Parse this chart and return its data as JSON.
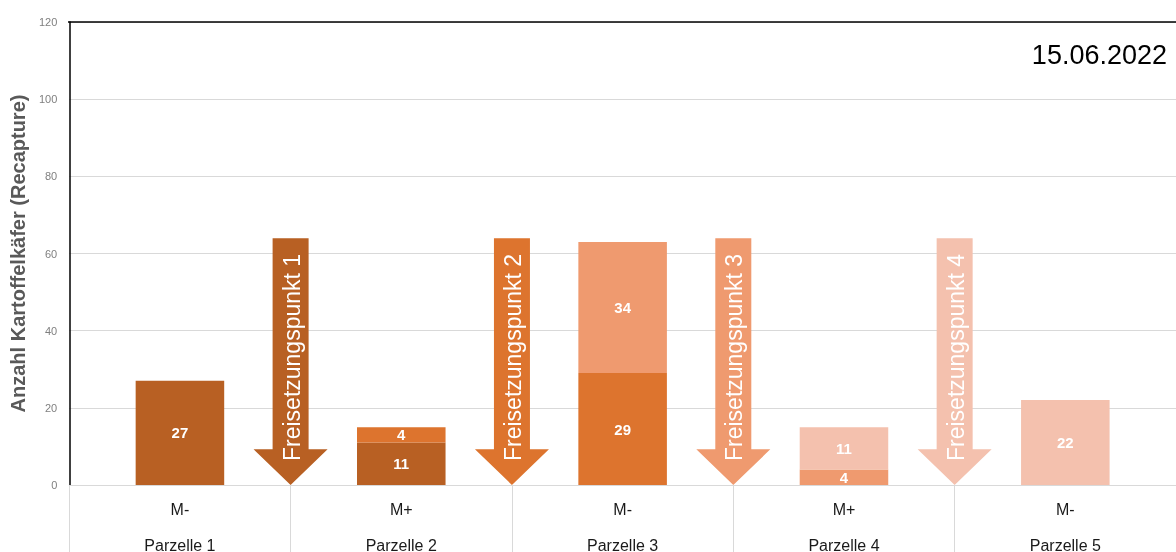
{
  "chart_data": {
    "type": "bar",
    "title": "15.06.2022",
    "ylabel": "Anzahl Kartoffelkäfer (Recapture)",
    "categories": [
      "M-",
      "M+",
      "M-",
      "M+",
      "M-"
    ],
    "stacked": true,
    "series": [
      {
        "color": "#b86023",
        "values": [
          27,
          11,
          null,
          null,
          null
        ]
      },
      {
        "color": "#dd742e",
        "values": [
          null,
          4,
          29,
          null,
          null
        ]
      },
      {
        "color": "#ef9a6f",
        "values": [
          null,
          null,
          34,
          4,
          null
        ]
      },
      {
        "color": "#f4c1ae",
        "values": [
          null,
          null,
          null,
          11,
          22
        ]
      }
    ],
    "ylim": [
      0,
      120
    ],
    "yticks": [
      0,
      20,
      40,
      60,
      80,
      100,
      120
    ],
    "grid": "y",
    "data_labels": true,
    "annotations": [
      "Freisetzungspunkt 1",
      "Freisetzungspunkt 2",
      "Freisetzungspunkt 3",
      "Freisetzungspunkt 4",
      "Parzelle 1",
      "Parzelle 2",
      "Parzelle 3",
      "Parzelle 4",
      "Parzelle 5"
    ]
  }
}
